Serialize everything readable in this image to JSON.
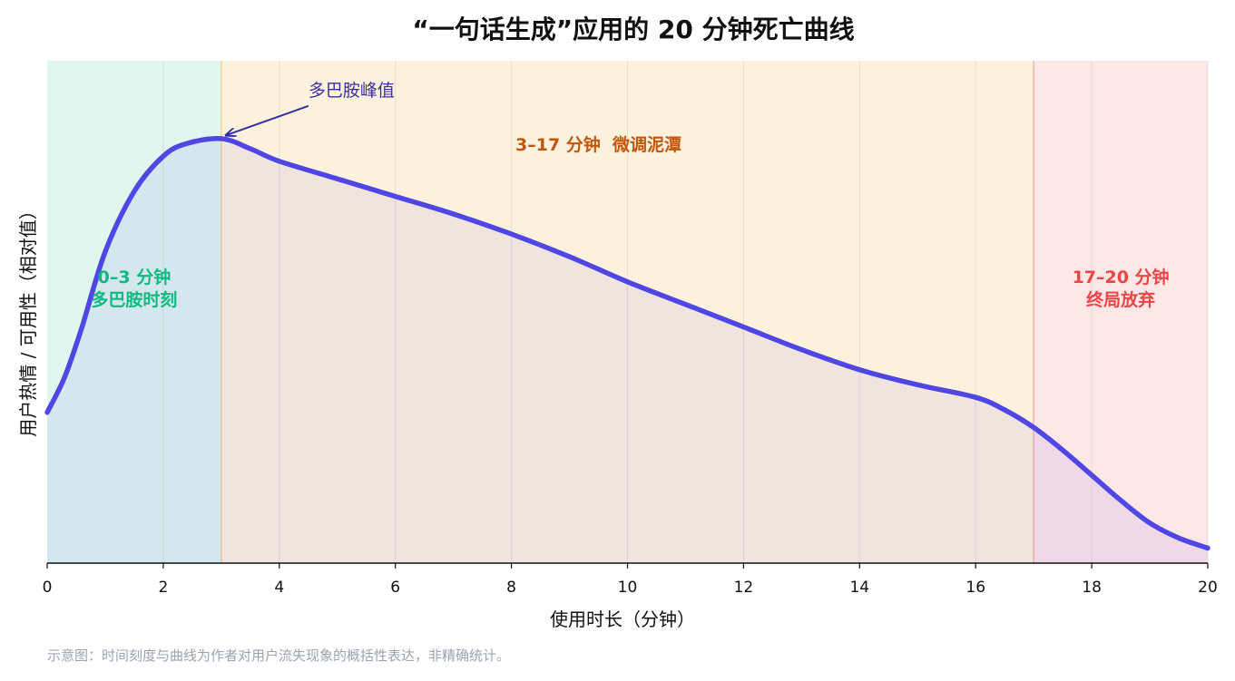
{
  "chart_data": {
    "type": "line",
    "title": "“一句话生成”应用的 20 分钟死亡曲线",
    "xlabel": "使用时长（分钟）",
    "ylabel": "用户热情 / 可用性（相对值）",
    "xlim": [
      0,
      20
    ],
    "ylim": [
      0,
      100
    ],
    "xticks": [
      0,
      2,
      4,
      6,
      8,
      10,
      12,
      14,
      16,
      18,
      20
    ],
    "grid": "vertical",
    "series": [
      {
        "color": "#4f46e5",
        "x": [
          0,
          0.3,
          0.6,
          1,
          1.5,
          2,
          2.4,
          3,
          3.5,
          4,
          5,
          6,
          7,
          8,
          9,
          10,
          11,
          12,
          13,
          14,
          15,
          16,
          16.5,
          17,
          17.5,
          18,
          18.5,
          19,
          19.5,
          20
        ],
        "y": [
          30,
          37,
          47,
          62,
          74,
          81,
          83.5,
          84.5,
          82.5,
          80,
          76.5,
          73,
          69.5,
          65.5,
          61,
          56,
          51.5,
          47,
          42.5,
          38.5,
          35.5,
          33,
          30.5,
          27,
          22.5,
          17.5,
          12.5,
          8,
          5,
          3
        ]
      }
    ],
    "phases": [
      {
        "x_start": 0,
        "x_end": 3,
        "label_line1": "0–3 分钟",
        "label_line2": "多巴胺时刻",
        "color": "#10b981",
        "label_color": "#10b981"
      },
      {
        "x_start": 3,
        "x_end": 17,
        "label_line1": "3–17 分钟  微调泥潭",
        "color": "#f59e0b",
        "label_color": "#c2570c"
      },
      {
        "x_start": 17,
        "x_end": 20,
        "label_line1": "17–20 分钟",
        "label_line2": "终局放弃",
        "color": "#ef4444",
        "label_color": "#ef4444"
      }
    ],
    "annotations": [
      {
        "text": "多巴胺峰值",
        "x": 3,
        "y": 84.5,
        "color": "#3730a3"
      }
    ]
  },
  "footnote": "示意图：时间刻度与曲线为作者对用户流失现象的概括性表达，非精确统计。"
}
